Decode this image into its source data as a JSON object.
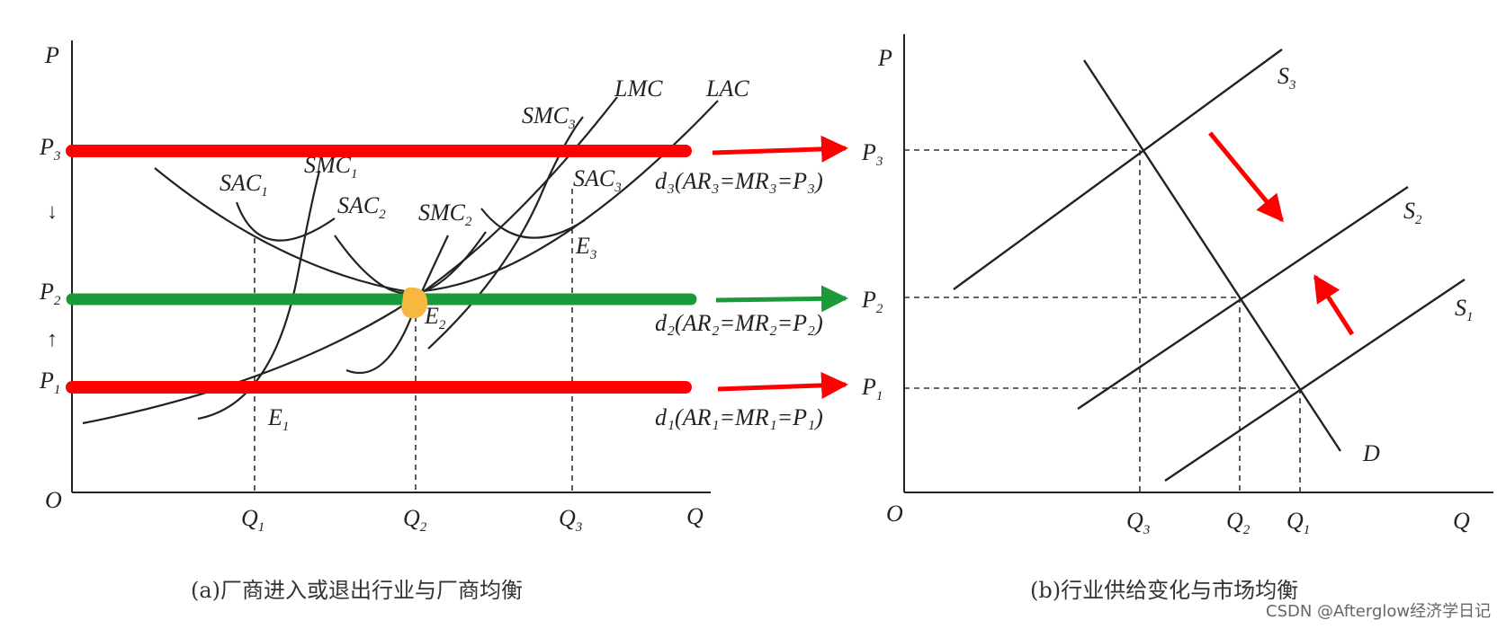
{
  "panel_a": {
    "axis": {
      "y": "P",
      "x": "Q",
      "origin": "O"
    },
    "price_labels": {
      "p3": {
        "main": "P",
        "sub": "3"
      },
      "p2": {
        "main": "P",
        "sub": "2"
      },
      "p1": {
        "main": "P",
        "sub": "1"
      }
    },
    "quantity_labels": {
      "q1": {
        "main": "Q",
        "sub": "1"
      },
      "q2": {
        "main": "Q",
        "sub": "2"
      },
      "q3": {
        "main": "Q",
        "sub": "3"
      }
    },
    "curve_labels": {
      "lmc": "LMC",
      "lac": "LAC",
      "smc3": {
        "main": "SMC",
        "sub": "3"
      },
      "smc1": {
        "main": "SMC",
        "sub": "1"
      },
      "smc2": {
        "main": "SMC",
        "sub": "2"
      },
      "sac1": {
        "main": "SAC",
        "sub": "1"
      },
      "sac2": {
        "main": "SAC",
        "sub": "2"
      },
      "sac3": {
        "main": "SAC",
        "sub": "3"
      }
    },
    "points": {
      "e1": {
        "main": "E",
        "sub": "1"
      },
      "e2": {
        "main": "E",
        "sub": "2"
      },
      "e3": {
        "main": "E",
        "sub": "3"
      }
    },
    "demand_labels": {
      "d3": "d₃(AR₃=MR₃=P₃)",
      "d2": "d₂(AR₂=MR₂=P₂)",
      "d1": "d₁(AR₁=MR₁=P₁)"
    },
    "arrows": {
      "down": "↓",
      "up": "↑"
    },
    "caption": "(a)厂商进入或退出行业与厂商均衡"
  },
  "panel_b": {
    "axis": {
      "y": "P",
      "x": "Q",
      "origin": "O"
    },
    "price_labels": {
      "p3": {
        "main": "P",
        "sub": "3"
      },
      "p2": {
        "main": "P",
        "sub": "2"
      },
      "p1": {
        "main": "P",
        "sub": "1"
      }
    },
    "quantity_labels": {
      "q3": {
        "main": "Q",
        "sub": "3"
      },
      "q2": {
        "main": "Q",
        "sub": "2"
      },
      "q1": {
        "main": "Q",
        "sub": "1"
      }
    },
    "curve_labels": {
      "s3": {
        "main": "S",
        "sub": "3"
      },
      "s2": {
        "main": "S",
        "sub": "2"
      },
      "s1": {
        "main": "S",
        "sub": "1"
      },
      "d": "D"
    },
    "caption": "(b)行业供给变化与市场均衡"
  },
  "watermark": "CSDN @Afterglow经济学日记",
  "colors": {
    "ink": "#222222",
    "highlight_red": "#ff0000",
    "highlight_green": "#1a9a3a",
    "equilibrium_dot": "#f5b942"
  }
}
